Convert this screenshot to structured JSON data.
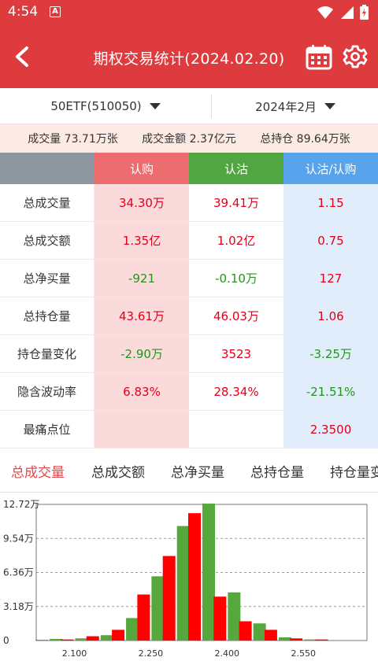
{
  "status_bar": {
    "time": "4:54",
    "notif_letter": "A"
  },
  "header": {
    "title": "期权交易统计(2024.02.20)"
  },
  "selectors": {
    "underlying": "50ETF(510050)",
    "month": "2024年2月"
  },
  "summary": [
    {
      "label": "成交量",
      "value": "73.71万张"
    },
    {
      "label": "成交金额",
      "value": "2.37亿元"
    },
    {
      "label": "总持仓",
      "value": "89.64万张"
    }
  ],
  "table": {
    "headers": [
      "",
      "认购",
      "认沽",
      "认沽/认购"
    ],
    "rows": [
      {
        "label": "总成交量",
        "call": "34.30万",
        "call_color": "red",
        "put": "39.41万",
        "put_color": "red",
        "ratio": "1.15",
        "ratio_color": "red"
      },
      {
        "label": "总成交额",
        "call": "1.35亿",
        "call_color": "red",
        "put": "1.02亿",
        "put_color": "red",
        "ratio": "0.75",
        "ratio_color": "red"
      },
      {
        "label": "总净买量",
        "call": "-921",
        "call_color": "green",
        "put": "-0.10万",
        "put_color": "green",
        "ratio": "127",
        "ratio_color": "red"
      },
      {
        "label": "总持仓量",
        "call": "43.61万",
        "call_color": "red",
        "put": "46.03万",
        "put_color": "red",
        "ratio": "1.06",
        "ratio_color": "red"
      },
      {
        "label": "持仓量变化",
        "call": "-2.90万",
        "call_color": "green",
        "put": "3523",
        "put_color": "red",
        "ratio": "-3.25万",
        "ratio_color": "green"
      },
      {
        "label": "隐含波动率",
        "call": "6.83%",
        "call_color": "red",
        "put": "28.34%",
        "put_color": "red",
        "ratio": "-21.51%",
        "ratio_color": "green"
      },
      {
        "label": "最痛点位",
        "call": "",
        "call_color": "red",
        "put": "",
        "put_color": "red",
        "ratio": "2.3500",
        "ratio_color": "red"
      }
    ]
  },
  "tabs": [
    "总成交量",
    "总成交额",
    "总净买量",
    "总持仓量",
    "持仓量变化"
  ],
  "active_tab": 0,
  "colors": {
    "brand": "#de3b3e",
    "call": "#ff0000",
    "put": "#56a83c",
    "up": "#e0001b",
    "down": "#22961b"
  },
  "chart_data": {
    "type": "bar",
    "categories": [
      "2.050",
      "2.100",
      "2.150",
      "2.200",
      "2.250",
      "2.300",
      "2.350",
      "2.400",
      "2.450",
      "2.500",
      "2.550",
      "2.600",
      "2.650"
    ],
    "x_tick_labels": [
      "2.100",
      "2.250",
      "2.400",
      "2.550"
    ],
    "y_tick_labels": [
      "12.72万",
      "9.54万",
      "6.36万",
      "3.18万",
      "0"
    ],
    "ylim": [
      0,
      12.72
    ],
    "series": [
      {
        "values": [
          0.05,
          0.1,
          0.4,
          1.0,
          4.3,
          7.9,
          11.9,
          4.1,
          1.8,
          1.0,
          0.2,
          0.1,
          0.0
        ]
      },
      {
        "values": [
          0.15,
          0.2,
          0.5,
          2.1,
          6.0,
          10.7,
          12.8,
          4.5,
          1.6,
          0.3,
          0.1,
          0.0,
          0.0
        ]
      }
    ]
  }
}
